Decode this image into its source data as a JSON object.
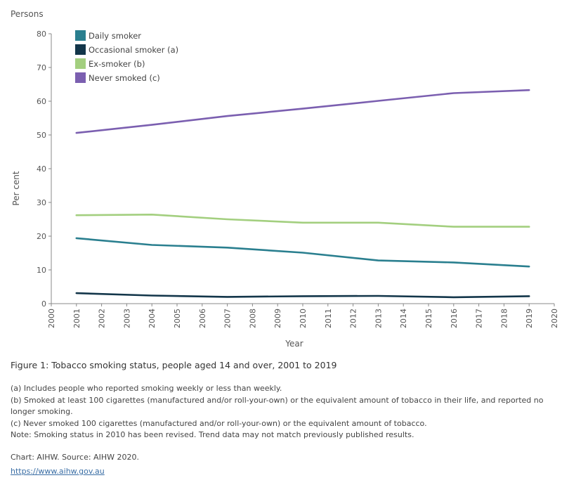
{
  "chart_data": {
    "type": "line",
    "panel_label": "Persons",
    "ylabel": "Per cent",
    "xlabel": "Year",
    "ylim": [
      0,
      80
    ],
    "yticks": [
      0,
      10,
      20,
      30,
      40,
      50,
      60,
      70,
      80
    ],
    "xlim": [
      2000,
      2020
    ],
    "xticks": [
      2000,
      2001,
      2002,
      2003,
      2004,
      2005,
      2006,
      2007,
      2008,
      2009,
      2010,
      2011,
      2012,
      2013,
      2014,
      2015,
      2016,
      2017,
      2018,
      2019,
      2020
    ],
    "x": [
      2001,
      2004,
      2007,
      2010,
      2013,
      2016,
      2019
    ],
    "legend_position": "top-left",
    "series": [
      {
        "name": "Daily smoker",
        "color": "#2a7f8f",
        "values": [
          19.4,
          17.4,
          16.6,
          15.1,
          12.8,
          12.2,
          11.0
        ]
      },
      {
        "name": "Occasional smoker (a)",
        "color": "#13364a",
        "values": [
          3.1,
          2.4,
          2.0,
          2.2,
          2.3,
          1.9,
          2.2
        ]
      },
      {
        "name": "Ex-smoker (b)",
        "color": "#a3cf7f",
        "values": [
          26.2,
          26.4,
          25.0,
          24.0,
          24.0,
          22.8,
          22.8
        ]
      },
      {
        "name": "Never smoked (c)",
        "color": "#7b5fb0",
        "values": [
          50.6,
          53.0,
          55.6,
          57.8,
          60.1,
          62.4,
          63.3
        ]
      }
    ]
  },
  "caption": {
    "title": "Figure 1: Tobacco smoking status, people aged 14 and over, 2001 to 2019",
    "notes": [
      "(a) Includes people who reported smoking weekly or less than weekly.",
      "(b) Smoked at least 100 cigarettes (manufactured and/or roll-your-own) or the equivalent amount of tobacco in their life, and reported no longer smoking.",
      "(c) Never smoked 100 cigarettes (manufactured and/or roll-your-own) or the equivalent amount of tobacco.",
      "Note: Smoking status in 2010 has been revised. Trend data may not match previously published results."
    ],
    "source": "Chart: AIHW. Source: AIHW 2020.",
    "link": "https://www.aihw.gov.au"
  }
}
